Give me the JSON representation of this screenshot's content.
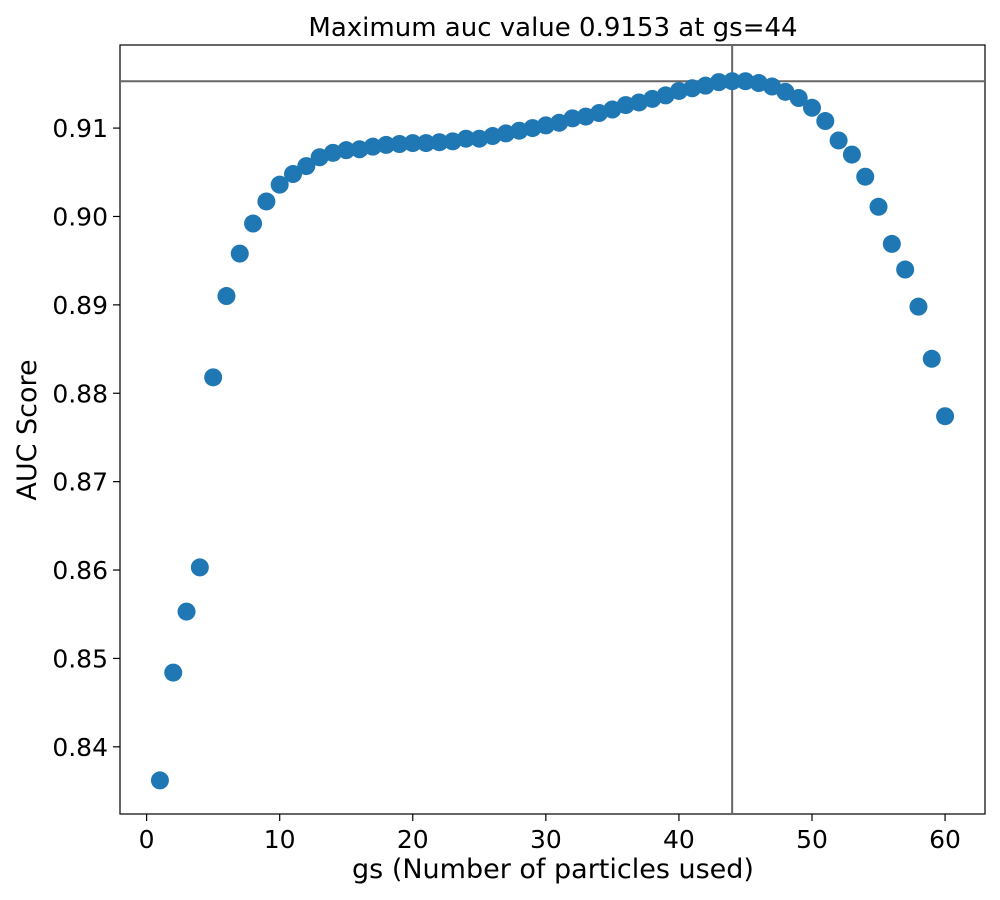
{
  "chart_data": {
    "type": "scatter",
    "title": "Maximum auc value 0.9153 at gs=44",
    "xlabel": "gs (Number of particles used)",
    "ylabel": "AUC Score",
    "xlim": [
      -2,
      63
    ],
    "ylim": [
      0.8324,
      0.9194
    ],
    "xticks": [
      0,
      10,
      20,
      30,
      40,
      50,
      60
    ],
    "xtick_labels": [
      "0",
      "10",
      "20",
      "30",
      "40",
      "50",
      "60"
    ],
    "yticks": [
      0.84,
      0.85,
      0.86,
      0.87,
      0.88,
      0.89,
      0.9,
      0.91
    ],
    "ytick_labels": [
      "0.84",
      "0.85",
      "0.86",
      "0.87",
      "0.88",
      "0.89",
      "0.90",
      "0.91"
    ],
    "grid": false,
    "marker_color": "#1f77b4",
    "reference_line_color": "#666666",
    "reference_lines": {
      "x": 44,
      "y": 0.9153
    },
    "series": [
      {
        "x": [
          1,
          2,
          3,
          4,
          5,
          6,
          7,
          8,
          9,
          10,
          11,
          12,
          13,
          14,
          15,
          16,
          17,
          18,
          19,
          20,
          21,
          22,
          23,
          24,
          25,
          26,
          27,
          28,
          29,
          30,
          31,
          32,
          33,
          34,
          35,
          36,
          37,
          38,
          39,
          40,
          41,
          42,
          43,
          44,
          45,
          46,
          47,
          48,
          49,
          50,
          51,
          52,
          53,
          54,
          55,
          56,
          57,
          58,
          59,
          60
        ],
        "y": [
          0.8362,
          0.8484,
          0.8553,
          0.8603,
          0.8818,
          0.891,
          0.8958,
          0.8992,
          0.9017,
          0.9036,
          0.9048,
          0.9057,
          0.9067,
          0.9072,
          0.9075,
          0.9076,
          0.9079,
          0.9081,
          0.9082,
          0.9083,
          0.9083,
          0.9084,
          0.9085,
          0.9088,
          0.9088,
          0.9091,
          0.9094,
          0.9097,
          0.91,
          0.9103,
          0.9106,
          0.9111,
          0.9113,
          0.9117,
          0.9121,
          0.9126,
          0.9129,
          0.9133,
          0.9137,
          0.9142,
          0.9145,
          0.9148,
          0.9152,
          0.9153,
          0.9153,
          0.9151,
          0.9147,
          0.9141,
          0.9134,
          0.9123,
          0.9108,
          0.9086,
          0.907,
          0.9045,
          0.9011,
          0.8969,
          0.894,
          0.8898,
          0.8839,
          0.8774
        ]
      }
    ]
  }
}
